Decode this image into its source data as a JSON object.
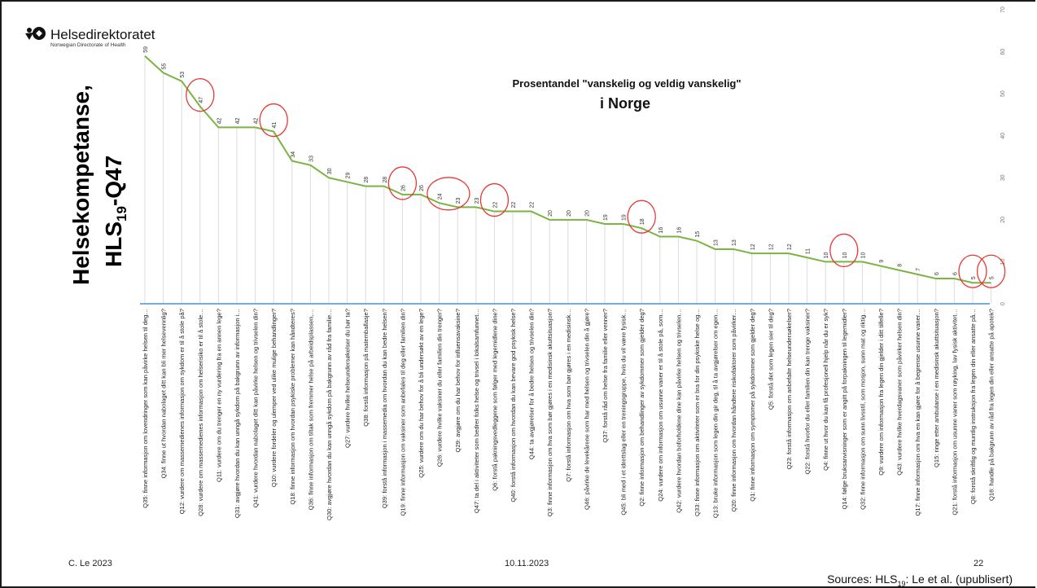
{
  "logo": {
    "name": "Helsedirektoratet",
    "subtitle": "Norwegian Directorate of Health"
  },
  "side_title": {
    "line1": "Helsekompetanse,",
    "line2_main": "HLS",
    "line2_sub": "19",
    "line2_tail": "-Q47"
  },
  "footer": {
    "author": "C. Le 2023",
    "date": "10.11.2023",
    "page": "22",
    "sources_pre": "Sources: HLS",
    "sources_sub": "19",
    "sources_post": ": Le et al. (upublisert)"
  },
  "colors": {
    "line": "#7cb342",
    "circle": "#e53935",
    "axis": "#4a8fd8",
    "grid": "#dcdcdc"
  },
  "chart_data": {
    "type": "line",
    "title": "Prosentandel \"vanskelig og veldig vanskelig\"",
    "subtitle": "i Norge",
    "xlabel": "",
    "ylabel": "",
    "ylim": [
      0,
      70
    ],
    "yticks": [
      0,
      10,
      20,
      30,
      40,
      50,
      60,
      70
    ],
    "grid": true,
    "categories": [
      "Q35: finne informasjon om lovendringer som kan påvirke helsen til deg…",
      "Q34: finne ut hvordan nabolaget ditt kan bli mer helsevennlig?",
      "Q12: vurdere om massemedienes informasjon om sykdom er til å stole på?",
      "Q28: vurdere om massemedienes informasjon om helserisiko er til å stole…",
      "Q11: vurdere om du trenger en ny vurdering fra en annen lege?",
      "Q31: avgjøre hvordan du kan unngå sykdom på bakgrunn av informasjon i…",
      "Q41: vurdere hvordan nabolaget ditt kan påvirke helsen og trivselen din?",
      "Q10: vurdere fordeler og ulemper ved ulike mulige behandlinger?",
      "Q18: finne informasjon om hvordan psykiske problemer kan håndteres?",
      "Q36: finne informasjon om tiltak som fremmer helse på arbeidsplassen,…",
      "Q30: avgjøre hvordan du kan unngå sykdom på bakgrunn av råd fra familie…",
      "Q27: vurdere hvilke helseundersøkelser du bør ta?",
      "Q38: forstå informasjon på matemballasje?",
      "Q39: forstå informasjon i massemedia om hvordan du kan bedre helsen?",
      "Q19: finne informasjon om vaksiner som anbefales til deg eller familien din?",
      "Q25: vurdere om du har behov for å bli undersøkt av en lege?",
      "Q26: vurdere hvilke vaksiner du eller familien din trenger?",
      "Q29: avgjøre om du har behov for influensavaksine?",
      "Q47: ta del i aktiviteter som bedrer folks helse og trivsel i lokalsamfunnet…",
      "Q6: forstå pakningsvedleggene som følger med legemidlene dine?",
      "Q40: forstå informasjon om hvordan du kan bevare god psykisk helse?",
      "Q44: ta avgjørelser for å bedre helsen og trivselen din?",
      "Q3: finne informasjon om hva som bør gjøres i en medisinsk akuttsituasjon?",
      "Q7: forstå informasjon om hva som bør gjøres i en medisinsk…",
      "Q46: påvirke de levekårene som har med helsen og trivselen din å gjøre?",
      "Q37: forstå råd om helse fra familie eller venner?",
      "Q45: bli med i et idrettslag eller en treningsgruppe, hvis du vil være fysisk…",
      "Q2: finne informasjon om behandlinger av sykdommer som gjelder deg?",
      "Q24: vurdere om informasjon om usunne vaner er til å stole på, som…",
      "Q42: vurdere hvordan boforholdene dine kan påvirke helsen og trivselen…",
      "Q33: finne informasjon om aktiviteter som er bra for din psykiske helse og…",
      "Q13: bruke informasjon som legen din gir deg, til å ta avgjørelser om egen…",
      "Q20: finne informasjon om hvordan håndtere risikofaktorer som påvirker…",
      "Q1: finne informasjon om symptomer på sykdommer som gjelder deg?",
      "Q5: forstå det som legen sier til deg?",
      "Q23: forstå informasjon om anbefalte helseundersøkelser?",
      "Q22: forstå hvorfor du eller familien din kan trenge vaksiner?",
      "Q4: finne ut hvor du kan få profesjonell hjelp når du er syk?",
      "Q14: følge bruksanvisninger som er angitt på forpakningen til legemidler?",
      "Q32: finne informasjon om sunn livsstil, som mosjon, sunn mat og riktig…",
      "Q9: vurdere om informasjon fra legen din gjelder i ditt tilfelle?",
      "Q43: vurdere hvilke hverdagsvaner som påvirker helsen din?",
      "Q17: finne informasjon om hva en kan gjøre for å begrense usunne vaner…",
      "Q15: ringe etter ambulanse i en medisinsk akuttsituasjon?",
      "Q21: forstå informasjon om usunne vaner som røyking, lav fysisk aktivitet…",
      "Q8: forstå skriftlig og muntlig instruksjon fra legen din eller ansatte på…",
      "Q16: handle på bakgrunn av råd fra legen din eller ansatte på apotek?"
    ],
    "values": [
      59,
      55,
      53,
      47,
      42,
      42,
      42,
      41,
      34,
      33,
      30,
      29,
      28,
      28,
      26,
      26,
      24,
      23,
      23,
      22,
      22,
      22,
      20,
      20,
      20,
      19,
      19,
      18,
      16,
      16,
      15,
      13,
      13,
      12,
      12,
      12,
      11,
      10,
      10,
      10,
      9,
      8,
      7,
      6,
      6,
      5,
      5
    ],
    "highlighted": [
      3,
      7,
      14,
      16,
      17,
      19,
      27,
      38,
      45,
      46
    ]
  }
}
